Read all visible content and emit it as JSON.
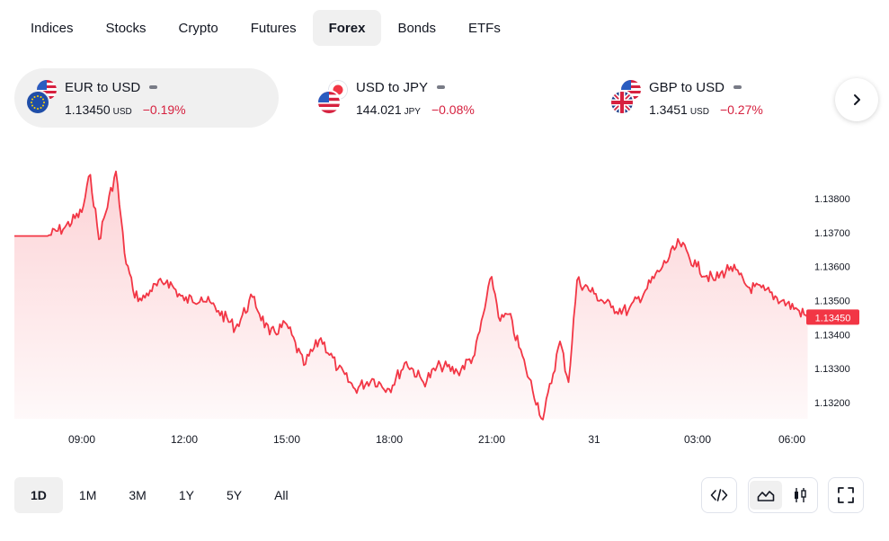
{
  "tabs": [
    {
      "label": "Indices",
      "active": false
    },
    {
      "label": "Stocks",
      "active": false
    },
    {
      "label": "Crypto",
      "active": false
    },
    {
      "label": "Futures",
      "active": false
    },
    {
      "label": "Forex",
      "active": true
    },
    {
      "label": "Bonds",
      "active": false
    },
    {
      "label": "ETFs",
      "active": false
    }
  ],
  "tickers": [
    {
      "name": "EUR to USD",
      "price": "1.13450",
      "unit": "USD",
      "change": "−0.19%",
      "flags": [
        "us-flag-icon",
        "eu-flag-icon"
      ],
      "active": true
    },
    {
      "name": "USD to JPY",
      "price": "144.021",
      "unit": "JPY",
      "change": "−0.08%",
      "flags": [
        "jp-flag-icon",
        "us-flag-icon"
      ],
      "active": false
    },
    {
      "name": "GBP to USD",
      "price": "1.3451",
      "unit": "USD",
      "change": "−0.27%",
      "flags": [
        "us-flag-icon",
        "uk-flag-icon"
      ],
      "active": false
    }
  ],
  "chart_data": {
    "type": "area",
    "series": [
      {
        "x": [
          "08:00",
          "08:30",
          "09:00",
          "09:15",
          "09:30",
          "10:00",
          "10:15",
          "10:30",
          "10:45",
          "11:00",
          "11:30",
          "12:00",
          "12:30",
          "13:00",
          "13:30",
          "14:00",
          "14:30",
          "15:00",
          "15:30",
          "16:00",
          "16:30",
          "17:00",
          "17:30",
          "18:00",
          "18:30",
          "19:00",
          "19:30",
          "20:00",
          "20:30",
          "21:00",
          "21:15",
          "21:30",
          "22:00",
          "22:30",
          "23:00",
          "23:15",
          "23:30",
          "00:00",
          "00:30",
          "01:00",
          "01:30",
          "02:00",
          "02:30",
          "03:00",
          "03:30",
          "04:00",
          "04:30",
          "05:00",
          "05:30",
          "06:00",
          "06:15"
        ],
        "values": [
          1.1369,
          1.13715,
          1.1376,
          1.1387,
          1.1368,
          1.1388,
          1.1364,
          1.1353,
          1.135,
          1.1353,
          1.1356,
          1.135,
          1.1351,
          1.1347,
          1.1342,
          1.1351,
          1.134,
          1.1343,
          1.1331,
          1.1339,
          1.133,
          1.1324,
          1.1327,
          1.1324,
          1.1332,
          1.1326,
          1.1331,
          1.1329,
          1.1334,
          1.1357,
          1.1344,
          1.1346,
          1.133,
          1.1315,
          1.1338,
          1.1326,
          1.1356,
          1.1352,
          1.1348,
          1.1347,
          1.1353,
          1.136,
          1.1367,
          1.136,
          1.1356,
          1.136,
          1.1354,
          1.1353,
          1.135,
          1.1347,
          1.1345
        ]
      }
    ],
    "y_ticks": [
      "1.13800",
      "1.13700",
      "1.13600",
      "1.13500",
      "1.13400",
      "1.13300",
      "1.13200"
    ],
    "ylim": [
      1.1315,
      1.139
    ],
    "x_ticks": [
      "09:00",
      "12:00",
      "15:00",
      "18:00",
      "21:00",
      "31",
      "03:00",
      "06:00"
    ],
    "last_price": "1.13450",
    "line_color": "#f23645",
    "grid": false
  },
  "ranges": [
    {
      "label": "1D",
      "active": true
    },
    {
      "label": "1M",
      "active": false
    },
    {
      "label": "3M",
      "active": false
    },
    {
      "label": "1Y",
      "active": false
    },
    {
      "label": "5Y",
      "active": false
    },
    {
      "label": "All",
      "active": false
    }
  ],
  "tools": {
    "embed_icon": "code-icon",
    "line_chart_icon": "area-chart-icon",
    "candle_icon": "candlestick-icon",
    "fullscreen_icon": "fullscreen-icon",
    "next_icon": "chevron-right-icon"
  },
  "colors": {
    "accent": "#f23645",
    "negative": "#d6213f",
    "active_bg": "#f0f0f0"
  }
}
